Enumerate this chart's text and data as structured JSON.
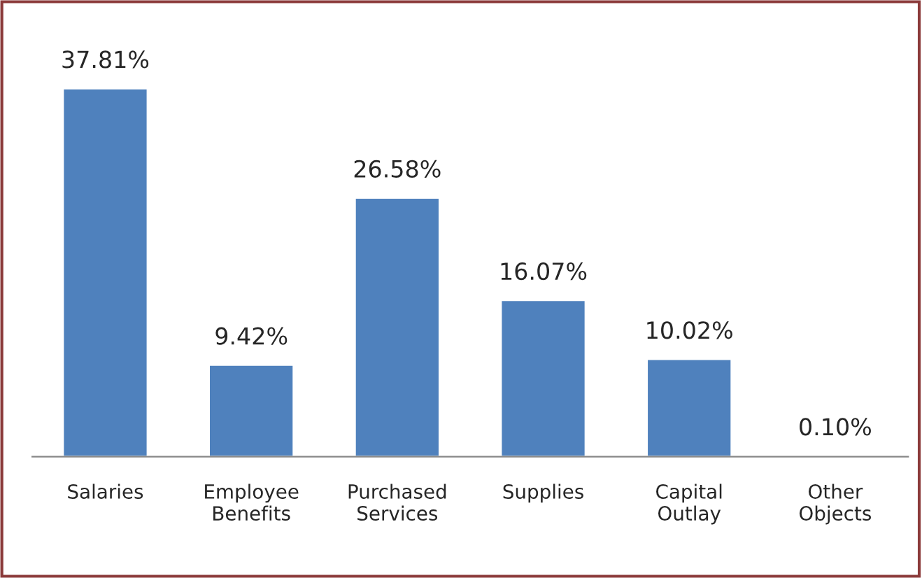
{
  "chart_data": {
    "type": "bar",
    "categories": [
      "Salaries",
      "Employee\nBenefits",
      "Purchased\nServices",
      "Supplies",
      "Capital\nOutlay",
      "Other\nObjects"
    ],
    "values": [
      37.81,
      9.42,
      26.58,
      16.07,
      10.02,
      0.1
    ],
    "value_labels": [
      "37.81%",
      "9.42%",
      "26.58%",
      "16.07%",
      "10.02%",
      "0.10%"
    ],
    "color": "#4f81bd",
    "grid": false
  }
}
